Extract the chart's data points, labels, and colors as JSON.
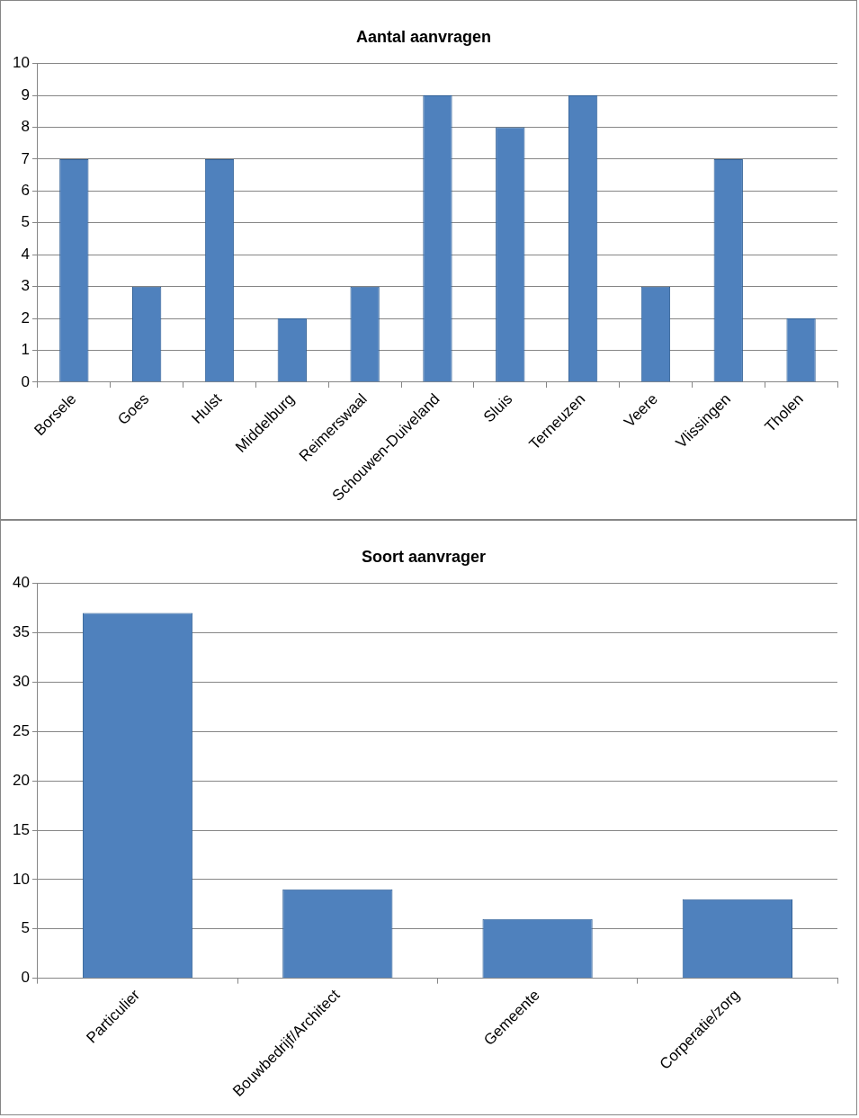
{
  "chart_data": [
    {
      "type": "bar",
      "title": "Aantal aanvragen",
      "categories": [
        "Borsele",
        "Goes",
        "Hulst",
        "Middelburg",
        "Reimerswaal",
        "Schouwen-Duiveland",
        "Sluis",
        "Terneuzen",
        "Veere",
        "Vlissingen",
        "Tholen"
      ],
      "values": [
        7,
        3,
        7,
        2,
        3,
        9,
        8,
        9,
        3,
        7,
        2
      ],
      "color": "#4f81bd",
      "ylim": [
        0,
        10
      ],
      "yticks": [
        0,
        1,
        2,
        3,
        4,
        5,
        6,
        7,
        8,
        9,
        10
      ],
      "grid": "y",
      "legend": false
    },
    {
      "type": "bar",
      "title": "Soort aanvrager",
      "categories": [
        "Particulier",
        "Bouwbedrijf/Architect",
        "Gemeente",
        "Corperatie/zorg"
      ],
      "values": [
        37,
        9,
        6,
        8
      ],
      "color": "#4f81bd",
      "ylim": [
        0,
        40
      ],
      "yticks": [
        0,
        5,
        10,
        15,
        20,
        25,
        30,
        35,
        40
      ],
      "grid": "y",
      "legend": false
    }
  ]
}
